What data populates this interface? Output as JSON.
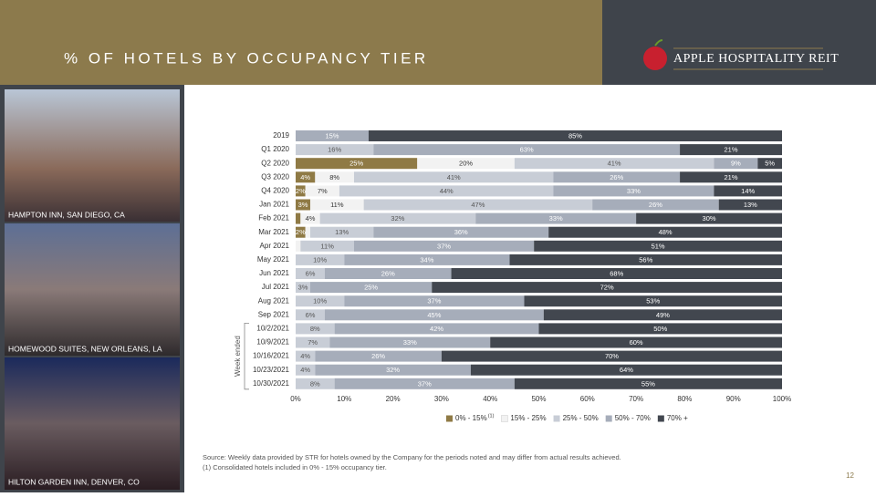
{
  "header": {
    "title": "% OF HOTELS BY OCCUPANCY TIER",
    "logo": "APPLE HOSPITALITY REIT"
  },
  "photos": [
    {
      "caption": "HAMPTON INN, SAN DIEGO, CA"
    },
    {
      "caption": "HOMEWOOD SUITES, NEW ORLEANS, LA"
    },
    {
      "caption": "HILTON GARDEN INN, DENVER, CO"
    }
  ],
  "chart_data": {
    "type": "stacked-bar-horizontal",
    "categories": [
      "2019",
      "Q1 2020",
      "Q2 2020",
      "Q3 2020",
      "Q4 2020",
      "Jan 2021",
      "Feb 2021",
      "Mar 2021",
      "Apr 2021",
      "May 2021",
      "Jun 2021",
      "Jul 2021",
      "Aug 2021",
      "Sep 2021",
      "10/2/2021",
      "10/9/2021",
      "10/16/2021",
      "10/23/2021",
      "10/30/2021"
    ],
    "group_label": "Week ended",
    "series": [
      {
        "name": "0% - 15%",
        "footnote_marker": "(1)",
        "color": "#8f7a45",
        "values": [
          0,
          0,
          25,
          4,
          2,
          3,
          1,
          2,
          0,
          0,
          0,
          0,
          0,
          0,
          0,
          0,
          0,
          0,
          0
        ],
        "value_labels": [
          null,
          null,
          "25%",
          "4%",
          "2%",
          "3%",
          null,
          "2%",
          null,
          null,
          null,
          null,
          null,
          null,
          null,
          null,
          null,
          null,
          null
        ]
      },
      {
        "name": "15% - 25%",
        "color": "#f2f2f2",
        "values": [
          0,
          0,
          20,
          8,
          7,
          11,
          4,
          1,
          1,
          0,
          0,
          0,
          0,
          0,
          0,
          0,
          0,
          0,
          0
        ],
        "value_labels": [
          null,
          null,
          "20%",
          "8%",
          "7%",
          "11%",
          "4%",
          null,
          null,
          null,
          null,
          null,
          null,
          null,
          null,
          null,
          null,
          null,
          null
        ]
      },
      {
        "name": "25% - 50%",
        "color": "#c8cdd6",
        "values": [
          0,
          16,
          41,
          41,
          44,
          47,
          32,
          13,
          11,
          10,
          6,
          3,
          10,
          6,
          8,
          7,
          4,
          4,
          8
        ],
        "value_labels": [
          null,
          "16%",
          "41%",
          "41%",
          "44%",
          "47%",
          "32%",
          "13%",
          "11%",
          "10%",
          "6%",
          "3%",
          "10%",
          "6%",
          "8%",
          "7%",
          "4%",
          "4%",
          "8%"
        ]
      },
      {
        "name": "50% - 70%",
        "color": "#a6adba",
        "values": [
          15,
          63,
          9,
          26,
          33,
          26,
          33,
          36,
          37,
          34,
          26,
          25,
          37,
          45,
          42,
          33,
          26,
          32,
          37
        ],
        "value_labels": [
          "15%",
          "63%",
          "9%",
          "26%",
          "33%",
          "26%",
          "33%",
          "36%",
          "37%",
          "34%",
          "26%",
          "25%",
          "37%",
          "45%",
          "42%",
          "33%",
          "26%",
          "32%",
          "37%"
        ]
      },
      {
        "name": "70% +",
        "color": "#42474f",
        "values": [
          85,
          21,
          5,
          21,
          14,
          13,
          30,
          48,
          51,
          56,
          68,
          72,
          53,
          49,
          50,
          60,
          70,
          64,
          55
        ],
        "value_labels": [
          "85%",
          "21%",
          "5%",
          "21%",
          "14%",
          "13%",
          "30%",
          "48%",
          "51%",
          "56%",
          "68%",
          "72%",
          "53%",
          "49%",
          "50%",
          "60%",
          "70%",
          "64%",
          "55%"
        ]
      }
    ],
    "xlim": [
      0,
      100
    ],
    "xticks": [
      {
        "value": 0,
        "label": "0%"
      },
      {
        "value": 10,
        "label": "10%"
      },
      {
        "value": 20,
        "label": "20%"
      },
      {
        "value": 30,
        "label": "30%"
      },
      {
        "value": 40,
        "label": "40%"
      },
      {
        "value": 50,
        "label": "50%"
      },
      {
        "value": 60,
        "label": "60%"
      },
      {
        "value": 70,
        "label": "70%"
      },
      {
        "value": 80,
        "label": "80%"
      },
      {
        "value": 90,
        "label": "90%"
      },
      {
        "value": 100,
        "label": "100%"
      }
    ]
  },
  "footer": {
    "source": "Source:  Weekly data provided by STR for hotels owned by the Company for the periods noted and may differ from actual results achieved.",
    "note": "(1)    Consolidated hotels included in 0% - 15% occupancy tier.",
    "page_number": "12"
  }
}
